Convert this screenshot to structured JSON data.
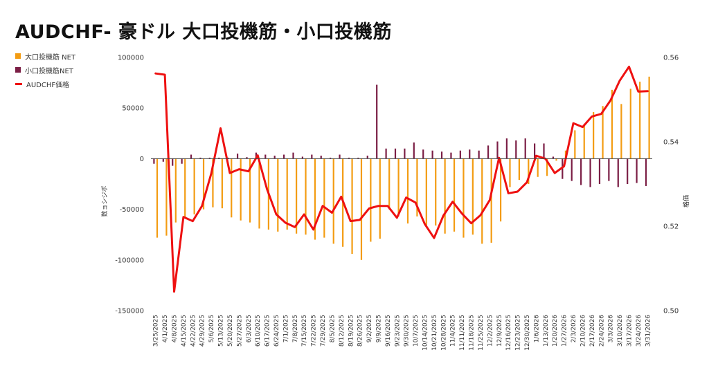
{
  "title": "AUDCHF- 豪ドル 大口投機筋・小口投機筋",
  "legend": [
    {
      "label": "大口投機筋 NET",
      "color": "#f39c12",
      "kind": "bar"
    },
    {
      "label": "小口投機筋NET",
      "color": "#7b1e45",
      "kind": "bar"
    },
    {
      "label": "AUDCHF価格",
      "color": "#ee1111",
      "kind": "line"
    }
  ],
  "chart_data": {
    "type": "bar",
    "title": "AUDCHF- 豪ドル 大口投機筋・小口投機筋",
    "xlabel": "",
    "ylabel": "数ョシジポ",
    "y2label": "格価",
    "ylim": [
      -150000,
      100000
    ],
    "y2lim": [
      0.5,
      0.56
    ],
    "yticks": [
      "100000",
      "50000",
      "0",
      "-50000",
      "-100000",
      "-150000"
    ],
    "y2ticks": [
      "0.56",
      "0.54",
      "0.52",
      "0.50"
    ],
    "categories": [
      "3/25/2025",
      "4/1/2025",
      "4/8/2025",
      "4/15/2025",
      "4/22/2025",
      "4/29/2025",
      "5/6/2025",
      "5/13/2025",
      "5/20/2025",
      "5/27/2025",
      "6/3/2025",
      "6/10/2025",
      "6/17/2025",
      "6/24/2025",
      "7/1/2025",
      "7/8/2025",
      "7/15/2025",
      "7/22/2025",
      "7/29/2025",
      "8/5/2025",
      "8/12/2025",
      "8/19/2025",
      "8/26/2025",
      "9/2/2025",
      "9/9/2025",
      "9/16/2025",
      "9/23/2025",
      "9/30/2025",
      "10/7/2025",
      "10/14/2025",
      "10/21/2025",
      "10/28/2025",
      "11/4/2025",
      "11/11/2025",
      "11/18/2025",
      "11/25/2025",
      "12/2/2025",
      "12/9/2025",
      "12/16/2025",
      "12/23/2025",
      "12/30/2025",
      "1/6/2026",
      "1/13/2026",
      "1/20/2026",
      "1/27/2026",
      "2/3/2026",
      "2/10/2026",
      "2/17/2026",
      "2/24/2026",
      "3/3/2026",
      "3/10/2026",
      "3/17/2026",
      "3/24/2026",
      "3/31/2026"
    ],
    "series": [
      {
        "name": "大口投機筋 NET",
        "type": "bar",
        "axis": "left",
        "color": "#f39c12",
        "values": [
          -78000,
          -76000,
          -63000,
          -58000,
          -55000,
          -50000,
          -48000,
          -49000,
          -58000,
          -61000,
          -63000,
          -69000,
          -70000,
          -72000,
          -70000,
          -74000,
          -75000,
          -80000,
          -78000,
          -84000,
          -87000,
          -94000,
          -100000,
          -82000,
          -79000,
          -50000,
          -57000,
          -64000,
          -57000,
          -66000,
          -66000,
          -74000,
          -72000,
          -78000,
          -75000,
          -84000,
          -83000,
          -62000,
          -28000,
          -21000,
          -25000,
          -18000,
          -17000,
          -2000,
          8000,
          28000,
          34000,
          46000,
          52000,
          68000,
          54000,
          69000,
          76000,
          81000
        ]
      },
      {
        "name": "小口投機筋NET",
        "type": "bar",
        "axis": "left",
        "color": "#7b1e45",
        "values": [
          -5000,
          -3000,
          -7000,
          -5000,
          4000,
          1000,
          1000,
          1000,
          1000,
          5000,
          1500,
          6000,
          4000,
          3000,
          4000,
          6000,
          2000,
          4000,
          3000,
          1000,
          4000,
          1000,
          1000,
          3000,
          73000,
          10000,
          10000,
          10000,
          16000,
          9000,
          8000,
          7000,
          6000,
          8000,
          9000,
          8000,
          13000,
          17000,
          20000,
          18000,
          20000,
          15000,
          15000,
          2000,
          -20000,
          -22000,
          -26000,
          -28000,
          -25000,
          -22000,
          -28000,
          -25000,
          -24000,
          -27000
        ]
      },
      {
        "name": "AUDCHF価格",
        "type": "line",
        "axis": "right",
        "color": "#ee1111",
        "values": [
          0.5562,
          0.5559,
          0.5045,
          0.5222,
          0.5212,
          0.5248,
          0.5325,
          0.5432,
          0.5326,
          0.5335,
          0.533,
          0.5368,
          0.5288,
          0.5228,
          0.5208,
          0.5198,
          0.5228,
          0.5192,
          0.5248,
          0.5232,
          0.527,
          0.5212,
          0.5215,
          0.5242,
          0.5248,
          0.5248,
          0.522,
          0.5268,
          0.5256,
          0.5205,
          0.5172,
          0.5225,
          0.5258,
          0.523,
          0.5207,
          0.5226,
          0.5262,
          0.5362,
          0.5278,
          0.5282,
          0.5304,
          0.5367,
          0.536,
          0.5326,
          0.5342,
          0.5444,
          0.5435,
          0.546,
          0.5466,
          0.5498,
          0.5545,
          0.5578,
          0.5519,
          0.552
        ]
      }
    ],
    "grid": false,
    "legend_position": "top-left"
  }
}
